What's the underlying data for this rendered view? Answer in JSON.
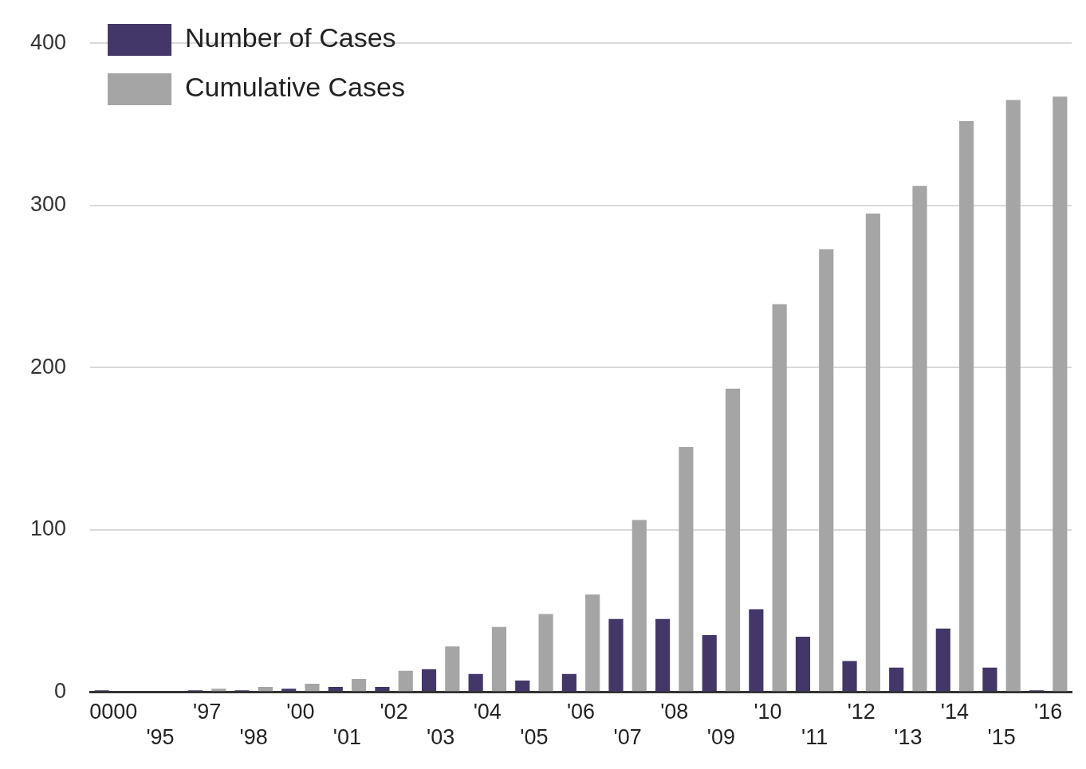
{
  "chart_data": {
    "type": "bar",
    "categories": [
      "0000",
      "'95",
      "'97",
      "'98",
      "'00",
      "'01",
      "'02",
      "'03",
      "'04",
      "'05",
      "'06",
      "'07",
      "'08",
      "'09",
      "'10",
      "'11",
      "'12",
      "'13",
      "'14",
      "'15",
      "'16"
    ],
    "series": [
      {
        "name": "Number of Cases",
        "color": "#433668",
        "values": [
          1,
          0,
          1,
          1,
          2,
          3,
          3,
          14,
          11,
          7,
          11,
          45,
          45,
          35,
          51,
          34,
          19,
          15,
          39,
          15,
          1
        ]
      },
      {
        "name": "Cumulative Cases",
        "color": "#a5a5a5",
        "values": [
          null,
          null,
          2,
          3,
          5,
          8,
          13,
          28,
          40,
          48,
          60,
          106,
          151,
          187,
          239,
          273,
          295,
          312,
          352,
          365,
          367
        ]
      }
    ],
    "ylim": [
      0,
      400
    ],
    "yticks": [
      0,
      100,
      200,
      300,
      400
    ],
    "grid": "y",
    "legend": "top left"
  }
}
